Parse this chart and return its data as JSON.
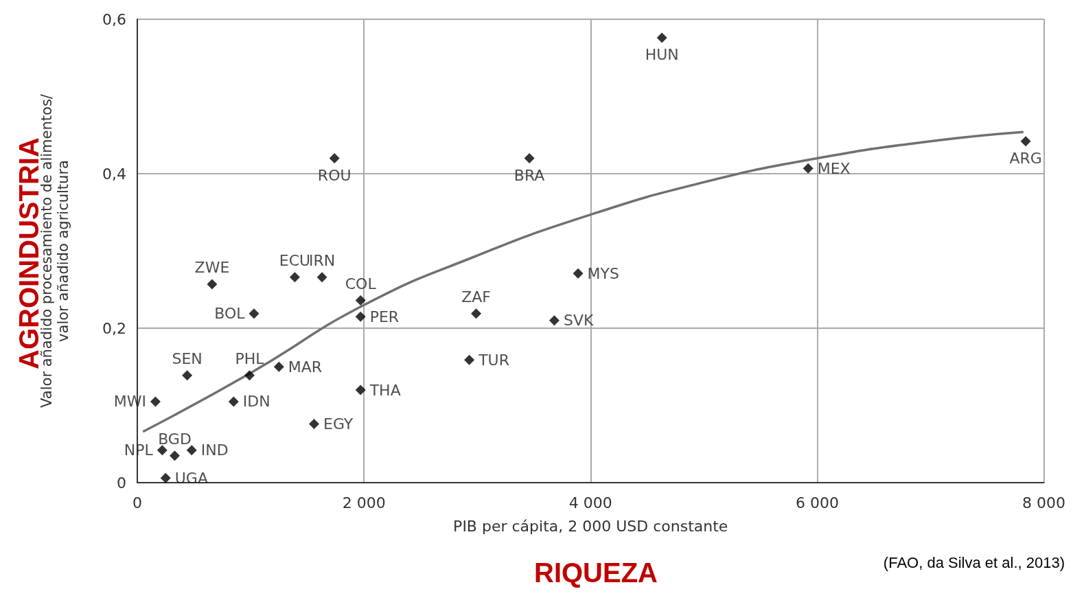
{
  "chart_data": {
    "type": "scatter",
    "xlabel": "PIB per cápita, 2 000 USD constante",
    "ylabel": "Valor añadido procesamiento de alimentos/\nvalor añadido agricultura",
    "annotations": [
      "AGROINDUSTRIA",
      "RIQUEZA",
      "(FAO, da Silva et al., 2013)"
    ],
    "xlim": [
      0,
      8000
    ],
    "ylim": [
      0,
      0.6
    ],
    "xticks": [
      0,
      {
        "value": 2000,
        "label": "2 000"
      },
      {
        "value": 4000,
        "label": "4 000"
      },
      {
        "value": 6000,
        "label": "6 000"
      },
      {
        "value": 8000,
        "label": "8 000"
      }
    ],
    "yticks": [
      0,
      {
        "value": 0.2,
        "label": "0,2"
      },
      {
        "value": 0.4,
        "label": "0,4"
      },
      {
        "value": 0.6,
        "label": "0,6"
      }
    ],
    "grid": true,
    "series": [
      {
        "marker": "diamond",
        "color": "#000000",
        "x": [
          4630,
          7840,
          5920,
          3460,
          1740,
          3890,
          3680,
          2990,
          2930,
          1390,
          1630,
          1970,
          1970,
          660,
          1030,
          440,
          990,
          1250,
          1970,
          160,
          850,
          1560,
          220,
          330,
          480,
          250
        ],
        "values": [
          0.576,
          0.442,
          0.407,
          0.42,
          0.42,
          0.271,
          0.21,
          0.219,
          0.159,
          0.266,
          0.266,
          0.236,
          0.215,
          0.257,
          0.219,
          0.139,
          0.139,
          0.15,
          0.12,
          0.105,
          0.105,
          0.076,
          0.042,
          0.035,
          0.042,
          0.006
        ],
        "value_labels": [
          "HUN",
          "ARG",
          "MEX",
          "BRA",
          "ROU",
          "MYS",
          "SVK",
          "ZAF",
          "TUR",
          "ECU",
          "IRN",
          "COL",
          "PER",
          "ZWE",
          "BOL",
          "SEN",
          "PHL",
          "MAR",
          "THA",
          "MWI",
          "IDN",
          "EGY",
          "NPL",
          "BGD",
          "IND",
          "UGA"
        ]
      },
      {
        "type": "line",
        "color": "#707070",
        "x": [
          50,
          1000,
          2000,
          3000,
          4000,
          5000,
          6000,
          7000,
          7820
        ],
        "values": [
          0.066,
          0.142,
          0.23,
          0.294,
          0.347,
          0.389,
          0.42,
          0.442,
          0.454
        ]
      }
    ]
  }
}
